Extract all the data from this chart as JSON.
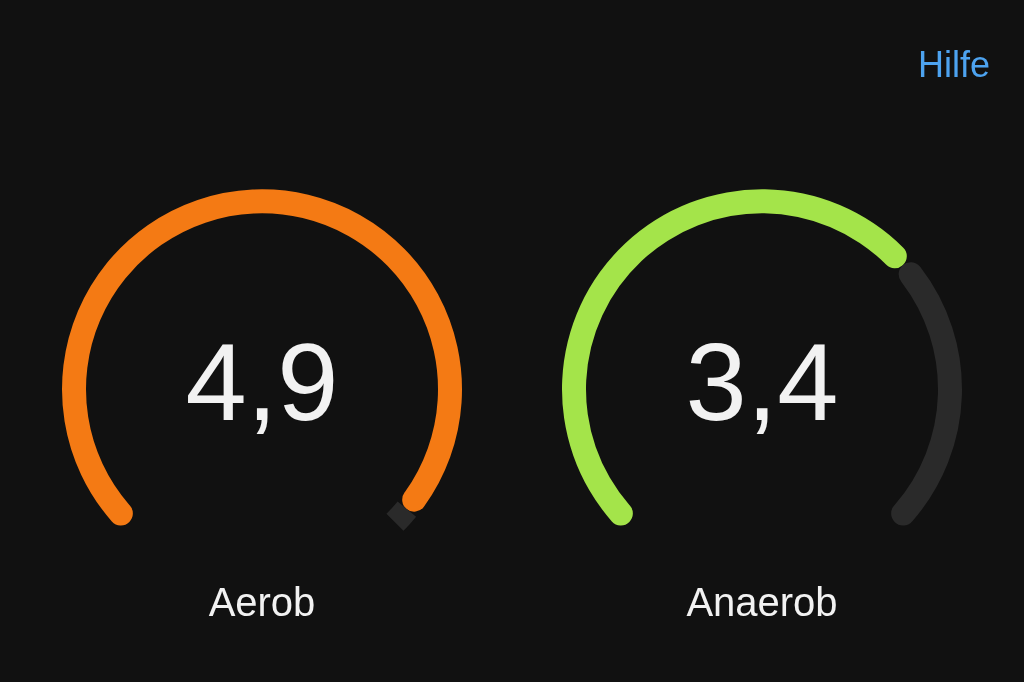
{
  "chart_data": [
    {
      "type": "donut",
      "title": "Aerob",
      "categories": [
        null,
        null
      ],
      "values": [
        4.9,
        0.1
      ],
      "colors": [
        "#f47a14",
        "#2a2a2a"
      ],
      "value_labels": [
        "4,9",
        null
      ],
      "annotations": [
        "Hilfe"
      ]
    },
    {
      "type": "donut",
      "title": "Anaerob",
      "categories": [
        null,
        null
      ],
      "values": [
        3.4,
        1.6
      ],
      "colors": [
        "#a4e44a",
        "#2a2a2a"
      ],
      "value_labels": [
        "3,4",
        null
      ]
    }
  ]
}
